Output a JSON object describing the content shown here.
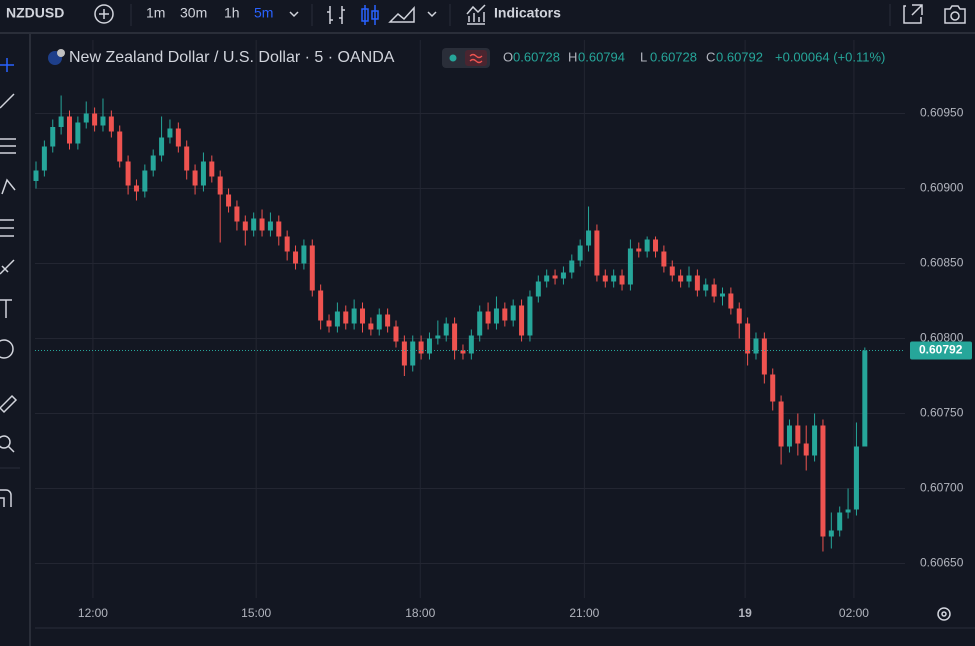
{
  "toolbar": {
    "symbol": "NZDUSD",
    "intervals": [
      "1m",
      "30m",
      "1h",
      "5m"
    ],
    "indicators": "Indicators"
  },
  "chart_data": {
    "type": "candlestick",
    "title": "New Zealand Dollar / U.S. Dollar · 5 · OANDA",
    "ohlc_letters": [
      "O",
      "H",
      "L",
      "C"
    ],
    "change": "+0.00064 (+0.11%)",
    "up_color": "#26a69a",
    "down_color": "#ef5350",
    "grid": true,
    "open": [
      0.60905,
      0.60912,
      0.60928,
      0.60941,
      0.60948,
      0.6093,
      0.60944,
      0.6095,
      0.60942,
      0.60948,
      0.60938,
      0.60918,
      0.60902,
      0.60898,
      0.60912,
      0.60922,
      0.60934,
      0.6094,
      0.60928,
      0.60912,
      0.60902,
      0.60918,
      0.60908,
      0.60896,
      0.60888,
      0.60878,
      0.60872,
      0.6088,
      0.60872,
      0.60878,
      0.60868,
      0.60858,
      0.6085,
      0.60862,
      0.60832,
      0.60812,
      0.60808,
      0.60818,
      0.6081,
      0.6082,
      0.6081,
      0.60806,
      0.60816,
      0.60808,
      0.60798,
      0.60782,
      0.60798,
      0.6079,
      0.608,
      0.60802,
      0.6081,
      0.60792,
      0.6079,
      0.60802,
      0.60818,
      0.6081,
      0.6082,
      0.60812,
      0.60822,
      0.60802,
      0.60828,
      0.60838,
      0.60842,
      0.6084,
      0.60844,
      0.60852,
      0.60862,
      0.60872,
      0.60842,
      0.60838,
      0.60842,
      0.60836,
      0.6086,
      0.60858,
      0.60866,
      0.60858,
      0.60848,
      0.60842,
      0.60838,
      0.60842,
      0.60832,
      0.60836,
      0.60828,
      0.6083,
      0.6082,
      0.6081,
      0.6079,
      0.608,
      0.60776,
      0.60758,
      0.60728,
      0.60742,
      0.6073,
      0.60722,
      0.60742,
      0.60668,
      0.60672,
      0.60684,
      0.60686,
      0.60728
    ],
    "high": [
      0.60918,
      0.60932,
      0.60946,
      0.60962,
      0.60952,
      0.60948,
      0.60958,
      0.60954,
      0.6096,
      0.60952,
      0.60942,
      0.60922,
      0.60906,
      0.60916,
      0.60926,
      0.60948,
      0.60946,
      0.60944,
      0.60932,
      0.60916,
      0.60924,
      0.60922,
      0.60912,
      0.609,
      0.60892,
      0.60882,
      0.60884,
      0.60886,
      0.60884,
      0.60882,
      0.60872,
      0.60862,
      0.60866,
      0.60866,
      0.60836,
      0.60816,
      0.60824,
      0.60822,
      0.60826,
      0.60824,
      0.60814,
      0.6082,
      0.6082,
      0.60812,
      0.60802,
      0.60802,
      0.60802,
      0.60804,
      0.60812,
      0.60814,
      0.60814,
      0.60796,
      0.60806,
      0.60822,
      0.60824,
      0.60828,
      0.60824,
      0.60826,
      0.60826,
      0.60832,
      0.60842,
      0.60846,
      0.60846,
      0.60848,
      0.60856,
      0.60866,
      0.60888,
      0.60876,
      0.60846,
      0.60846,
      0.60846,
      0.60866,
      0.60864,
      0.60868,
      0.60868,
      0.60862,
      0.60852,
      0.60846,
      0.60848,
      0.60846,
      0.6084,
      0.6084,
      0.60834,
      0.60834,
      0.60824,
      0.60814,
      0.60804,
      0.60804,
      0.6078,
      0.60762,
      0.60746,
      0.6075,
      0.60742,
      0.6075,
      0.60746,
      0.60684,
      0.60688,
      0.607,
      0.60744,
      0.60794
    ],
    "low": [
      0.609,
      0.60908,
      0.60924,
      0.60936,
      0.60926,
      0.60926,
      0.6094,
      0.60938,
      0.60938,
      0.60934,
      0.60914,
      0.60896,
      0.60892,
      0.60894,
      0.60908,
      0.60918,
      0.6093,
      0.60924,
      0.60906,
      0.60896,
      0.60898,
      0.60904,
      0.60864,
      0.60884,
      0.60872,
      0.60862,
      0.60868,
      0.60868,
      0.60868,
      0.60862,
      0.60852,
      0.60846,
      0.60846,
      0.60828,
      0.60806,
      0.60804,
      0.60804,
      0.60806,
      0.60806,
      0.60804,
      0.60802,
      0.60802,
      0.60804,
      0.60794,
      0.60775,
      0.60778,
      0.60786,
      0.60786,
      0.60796,
      0.60798,
      0.60786,
      0.60786,
      0.60786,
      0.60798,
      0.60806,
      0.60806,
      0.60808,
      0.60808,
      0.60798,
      0.60798,
      0.60824,
      0.60834,
      0.60836,
      0.60836,
      0.6084,
      0.60848,
      0.60858,
      0.60838,
      0.60834,
      0.60834,
      0.60832,
      0.60832,
      0.60854,
      0.60854,
      0.60854,
      0.60844,
      0.60838,
      0.60834,
      0.60834,
      0.60828,
      0.60828,
      0.60824,
      0.60822,
      0.60816,
      0.608,
      0.60782,
      0.60786,
      0.6077,
      0.60752,
      0.60716,
      0.60724,
      0.60722,
      0.60712,
      0.60718,
      0.60658,
      0.6066,
      0.60668,
      0.6068,
      0.60682,
      0.60728
    ],
    "close": [
      0.60912,
      0.60928,
      0.60941,
      0.60948,
      0.6093,
      0.60944,
      0.6095,
      0.60942,
      0.60948,
      0.60938,
      0.60918,
      0.60902,
      0.60898,
      0.60912,
      0.60922,
      0.60934,
      0.6094,
      0.60928,
      0.60912,
      0.60902,
      0.60918,
      0.60908,
      0.60896,
      0.60888,
      0.60878,
      0.60872,
      0.6088,
      0.60872,
      0.60878,
      0.60868,
      0.60858,
      0.6085,
      0.60862,
      0.60832,
      0.60812,
      0.60808,
      0.60818,
      0.6081,
      0.6082,
      0.6081,
      0.60806,
      0.60816,
      0.60808,
      0.60798,
      0.60782,
      0.60798,
      0.6079,
      0.608,
      0.60802,
      0.6081,
      0.60792,
      0.6079,
      0.60802,
      0.60818,
      0.6081,
      0.6082,
      0.60812,
      0.60822,
      0.60802,
      0.60828,
      0.60838,
      0.60842,
      0.6084,
      0.60844,
      0.60852,
      0.60862,
      0.60872,
      0.60842,
      0.60838,
      0.60842,
      0.60836,
      0.6086,
      0.60858,
      0.60866,
      0.60858,
      0.60848,
      0.60842,
      0.60838,
      0.60842,
      0.60832,
      0.60836,
      0.60828,
      0.6083,
      0.6082,
      0.6081,
      0.6079,
      0.608,
      0.60776,
      0.60758,
      0.60728,
      0.60742,
      0.6073,
      0.60722,
      0.60742,
      0.60668,
      0.60672,
      0.60684,
      0.60686,
      0.60728,
      0.60792
    ],
    "xlim": [
      -0.12,
      103.8
    ],
    "xticks": [
      {
        "value": 6.8,
        "label": "12:00"
      },
      {
        "value": 26.3,
        "label": "15:00"
      },
      {
        "value": 45.9,
        "label": "18:00"
      },
      {
        "value": 65.5,
        "label": "21:00"
      },
      {
        "value": 84.7,
        "label": "19"
      },
      {
        "value": 97.7,
        "label": "02:00"
      }
    ],
    "ylim": [
      0.60627,
      0.60999
    ],
    "yticks": [
      {
        "value": 0.6065,
        "label": "0.60650"
      },
      {
        "value": 0.607,
        "label": "0.60700"
      },
      {
        "value": 0.6075,
        "label": "0.60750"
      },
      {
        "value": 0.608,
        "label": "0.60800"
      },
      {
        "value": 0.6085,
        "label": "0.60850"
      },
      {
        "value": 0.609,
        "label": "0.60900"
      },
      {
        "value": 0.6095,
        "label": "0.60950"
      }
    ]
  }
}
